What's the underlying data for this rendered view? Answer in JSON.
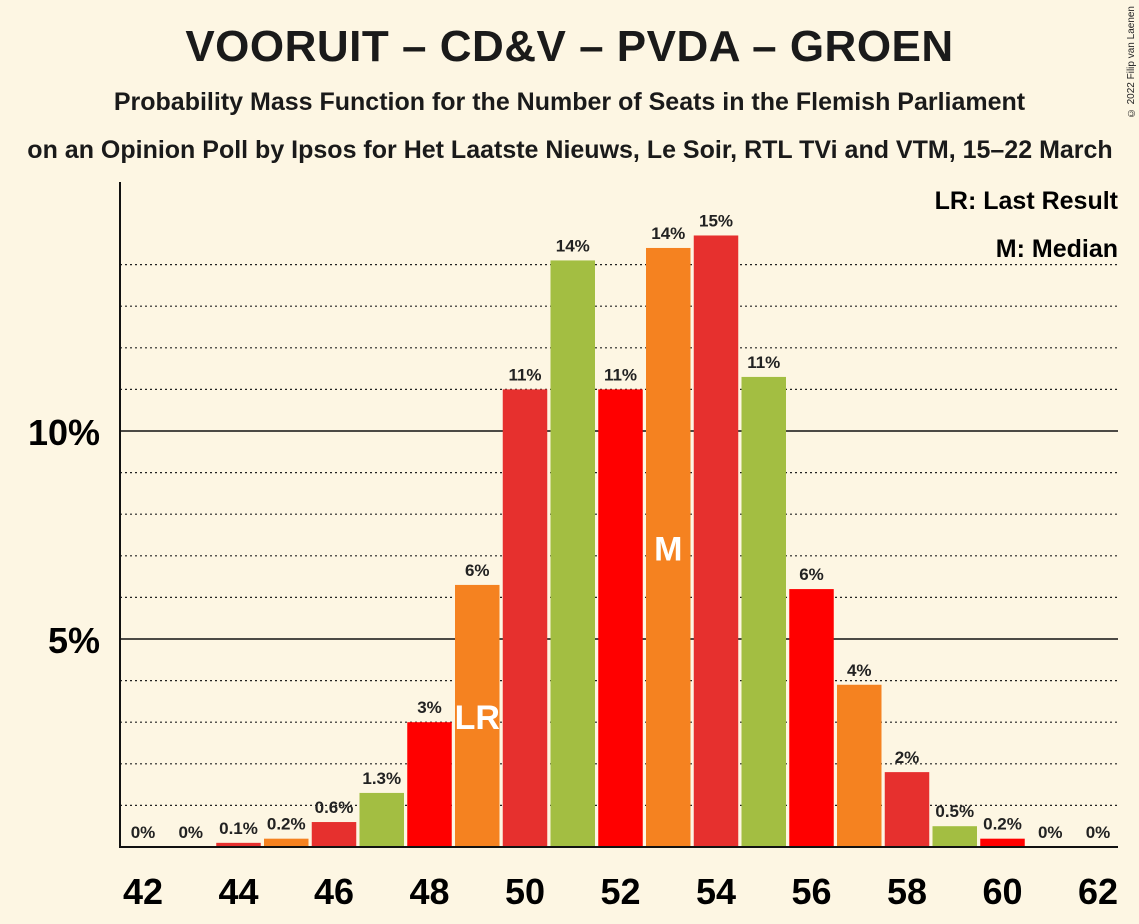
{
  "title": "VOORUIT – CD&V – PVDA – GROEN",
  "subtitle": "Probability Mass Function for the Number of Seats in the Flemish Parliament",
  "source": "on an Opinion Poll by Ipsos for Het Laatste Nieuws, Le Soir, RTL TVi and VTM, 15–22 March",
  "copyright": "© 2022 Filip van Laenen",
  "legend": {
    "last_result": "LR: Last Result",
    "median": "M: Median"
  },
  "colors": {
    "red": "#ff0000",
    "orange": "#f58220",
    "green": "#a3be42",
    "darkred": "#e6302e"
  },
  "chart_data": {
    "type": "bar",
    "x": [
      42,
      43,
      44,
      45,
      46,
      47,
      48,
      49,
      50,
      51,
      52,
      53,
      54,
      55,
      56,
      57,
      58,
      59,
      60,
      61,
      62
    ],
    "values": [
      0,
      0,
      0.1,
      0.2,
      0.6,
      1.3,
      3.0,
      6.3,
      11.0,
      14.1,
      11.0,
      14.4,
      14.7,
      11.3,
      6.2,
      3.9,
      1.8,
      0.5,
      0.2,
      0,
      0
    ],
    "labels": [
      "0%",
      "0%",
      "0.1%",
      "0.2%",
      "0.6%",
      "1.3%",
      "3%",
      "6%",
      "11%",
      "14%",
      "11%",
      "14%",
      "15%",
      "11%",
      "6%",
      "4%",
      "2%",
      "0.5%",
      "0.2%",
      "0%",
      "0%"
    ],
    "bar_colors": [
      "red",
      "orange",
      "darkred",
      "orange",
      "darkred",
      "green",
      "red",
      "orange",
      "darkred",
      "green",
      "red",
      "orange",
      "darkred",
      "green",
      "red",
      "orange",
      "darkred",
      "green",
      "red",
      "orange",
      "darkred"
    ],
    "x_tick_labels": [
      "42",
      "44",
      "46",
      "48",
      "50",
      "52",
      "54",
      "56",
      "58",
      "60",
      "62"
    ],
    "y_ticks": [
      {
        "value": 5,
        "label": "5%"
      },
      {
        "value": 10,
        "label": "10%"
      }
    ],
    "ylim": [
      0,
      16
    ],
    "grid": "dotted every 1%",
    "last_result": 49,
    "last_result_label": "LR",
    "median": 53,
    "median_label": "M",
    "legend_position": "top-right"
  }
}
